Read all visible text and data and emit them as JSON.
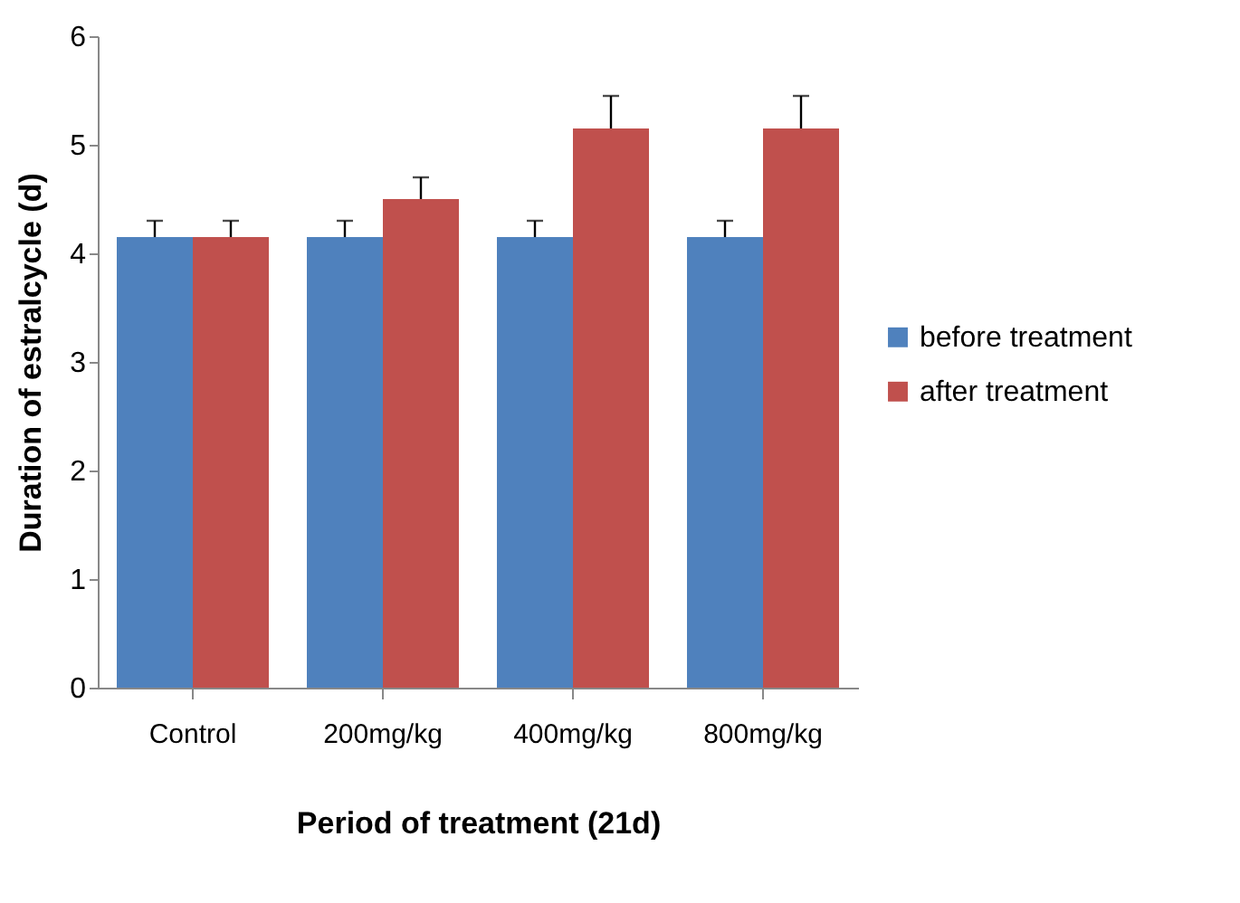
{
  "chart_data": {
    "type": "bar",
    "xlabel": "Period of treatment (21d)",
    "ylabel": "Duration of estralcycle (d)",
    "categories": [
      "Control",
      "200mg/kg",
      "400mg/kg",
      "800mg/kg"
    ],
    "series": [
      {
        "name": "before treatment",
        "color": "#4f81bd",
        "values": [
          4.15,
          4.15,
          4.15,
          4.15
        ],
        "errors": [
          [
            4.15,
            4.3
          ],
          [
            4.15,
            4.3
          ],
          [
            4.15,
            4.3
          ],
          [
            4.15,
            4.3
          ]
        ]
      },
      {
        "name": "after treatment",
        "color": "#c0504d",
        "values": [
          4.15,
          4.5,
          5.15,
          5.15
        ],
        "errors": [
          [
            4.15,
            4.3
          ],
          [
            4.5,
            4.7
          ],
          [
            5.15,
            5.45
          ],
          [
            5.15,
            5.45
          ]
        ]
      }
    ],
    "ylim": [
      0,
      6
    ],
    "yticks": [
      0,
      1,
      2,
      3,
      4,
      5,
      6
    ],
    "grid": false,
    "legend": "right"
  }
}
